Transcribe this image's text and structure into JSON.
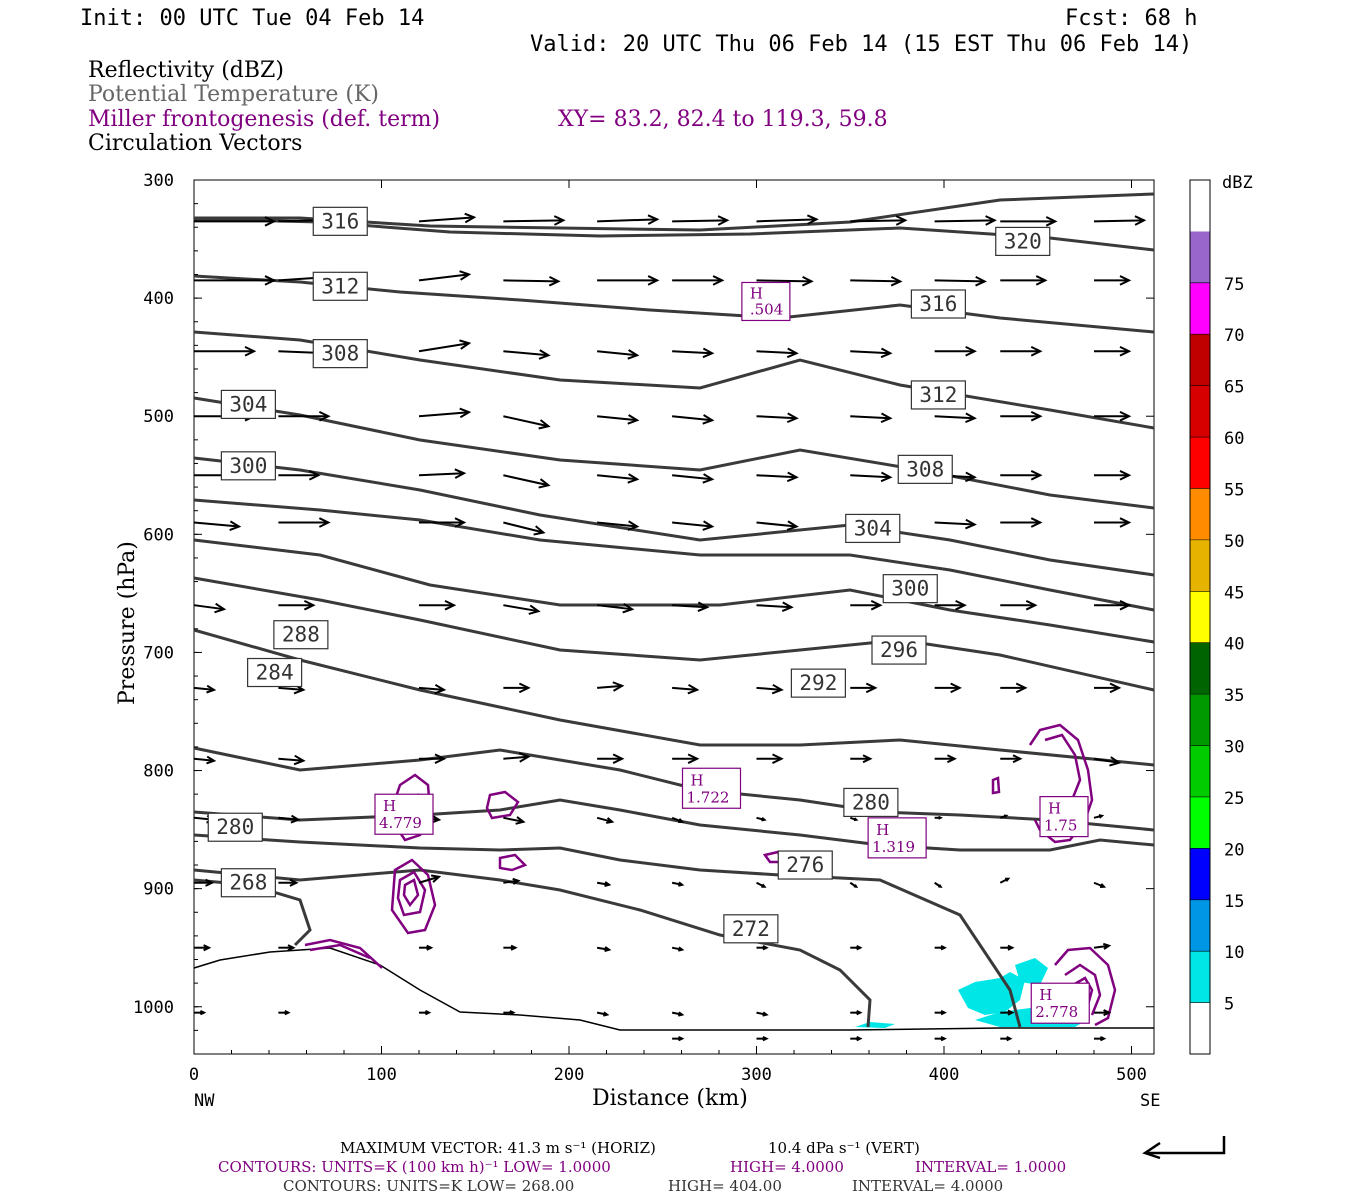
{
  "header": {
    "init": "Init: 00 UTC Tue 04 Feb 14",
    "fcst": "Fcst:   68 h",
    "valid": "Valid: 20 UTC Thu 06 Feb 14 (15 EST Thu 06 Feb 14)",
    "field1": "Reflectivity (dBZ)",
    "field2": "Potential Temperature (K)",
    "field3": "Miller frontogenesis (def. term)",
    "xy": "XY=  83.2, 82.4 to 119.3, 59.8",
    "field4": "Circulation Vectors"
  },
  "footer": {
    "maxvec": "MAXIMUM VECTOR:  41.3 m s⁻¹ (HORIZ)",
    "maxvec_vert": "10.4 dPa s⁻¹ (VERT)",
    "contours1": "CONTOURS:  UNITS=K (100 km h)⁻¹  LOW=  1.0000",
    "contours1_high": "HIGH=  4.0000",
    "contours1_int": "INTERVAL=   1.0000",
    "contours2": "CONTOURS:  UNITS=K  LOW=  268.00",
    "contours2_high": "HIGH=  404.00",
    "contours2_int": "INTERVAL=   4.0000"
  },
  "colors": {
    "theta": "#333333",
    "fronto": "#800080",
    "vector": "#000000",
    "refl": "#00e6e6"
  },
  "chart_data": {
    "type": "cross-section",
    "xlabel": "Distance (km)",
    "ylabel": "Pressure (hPa)",
    "xlim": [
      0,
      512
    ],
    "ylim": [
      1040,
      300
    ],
    "x_ticks": [
      0,
      100,
      200,
      300,
      400,
      500
    ],
    "y_ticks": [
      300,
      400,
      500,
      600,
      700,
      800,
      900,
      1000
    ],
    "x_left_label": "NW",
    "x_right_label": "SE",
    "colorbar": {
      "unit": "dBZ",
      "levels": [
        5,
        10,
        15,
        20,
        25,
        30,
        35,
        40,
        45,
        50,
        55,
        60,
        65,
        70,
        75
      ],
      "colors": [
        "#00e6e6",
        "#0096e6",
        "#0000ff",
        "#0000cc",
        "#00ff00",
        "#00cc00",
        "#009900",
        "#006400",
        "#ffff00",
        "#e6b400",
        "#ff8c00",
        "#ff0000",
        "#d60000",
        "#c00000",
        "#ff00ff",
        "#9966cc",
        "#ffffff"
      ]
    },
    "theta_labels": [
      {
        "text": "316",
        "x": 78,
        "p": 335
      },
      {
        "text": "320",
        "x": 442,
        "p": 352
      },
      {
        "text": "312",
        "x": 78,
        "p": 390
      },
      {
        "text": "316",
        "x": 397,
        "p": 405
      },
      {
        "text": "H",
        "sub": ".504",
        "x": 305,
        "p": 402
      },
      {
        "text": "308",
        "x": 78,
        "p": 447
      },
      {
        "text": "312",
        "x": 397,
        "p": 482
      },
      {
        "text": "304",
        "x": 29,
        "p": 490
      },
      {
        "text": "308",
        "x": 390,
        "p": 545
      },
      {
        "text": "300",
        "x": 29,
        "p": 542
      },
      {
        "text": "304",
        "x": 362,
        "p": 595
      },
      {
        "text": "300",
        "x": 382,
        "p": 646
      },
      {
        "text": "288",
        "x": 57,
        "p": 685
      },
      {
        "text": "296",
        "x": 376,
        "p": 698
      },
      {
        "text": "284",
        "x": 43,
        "p": 717
      },
      {
        "text": "292",
        "x": 333,
        "p": 726
      },
      {
        "text": "280",
        "x": 22,
        "p": 848
      },
      {
        "text": "280",
        "x": 361,
        "p": 827
      },
      {
        "text": "276",
        "x": 326,
        "p": 880
      },
      {
        "text": "272",
        "x": 297,
        "p": 934
      },
      {
        "text": "268",
        "x": 29,
        "p": 895
      }
    ],
    "fronto_maxima": [
      {
        "label": "H",
        "value": "4.779",
        "x": 112,
        "p": 837
      },
      {
        "label": "H",
        "value": "1.722",
        "x": 276,
        "p": 815
      },
      {
        "label": "H",
        "value": "1.319",
        "x": 375,
        "p": 857
      },
      {
        "label": "H",
        "value": "1.75",
        "x": 464,
        "p": 839
      },
      {
        "label": "H",
        "value": "2.778",
        "x": 462,
        "p": 997
      }
    ]
  }
}
